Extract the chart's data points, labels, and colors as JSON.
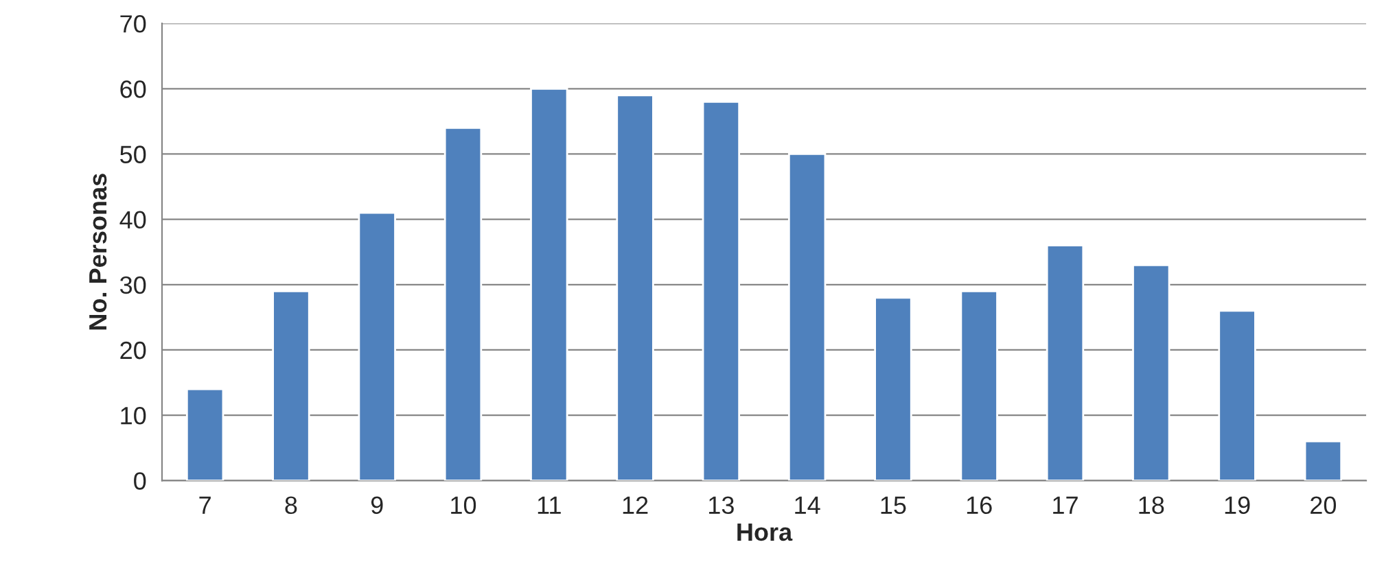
{
  "chart_data": {
    "type": "bar",
    "xlabel": "Hora",
    "ylabel": "No. Personas",
    "categories": [
      "7",
      "8",
      "9",
      "10",
      "11",
      "12",
      "13",
      "14",
      "15",
      "16",
      "17",
      "18",
      "19",
      "20"
    ],
    "values": [
      14,
      29,
      41,
      54,
      60,
      59,
      58,
      50,
      28,
      29,
      36,
      33,
      26,
      6
    ],
    "color": "#4f81bd",
    "ylim": [
      0,
      70
    ],
    "yticks": [
      0,
      10,
      20,
      30,
      40,
      50,
      60,
      70
    ],
    "grid": "y",
    "legend": false
  }
}
